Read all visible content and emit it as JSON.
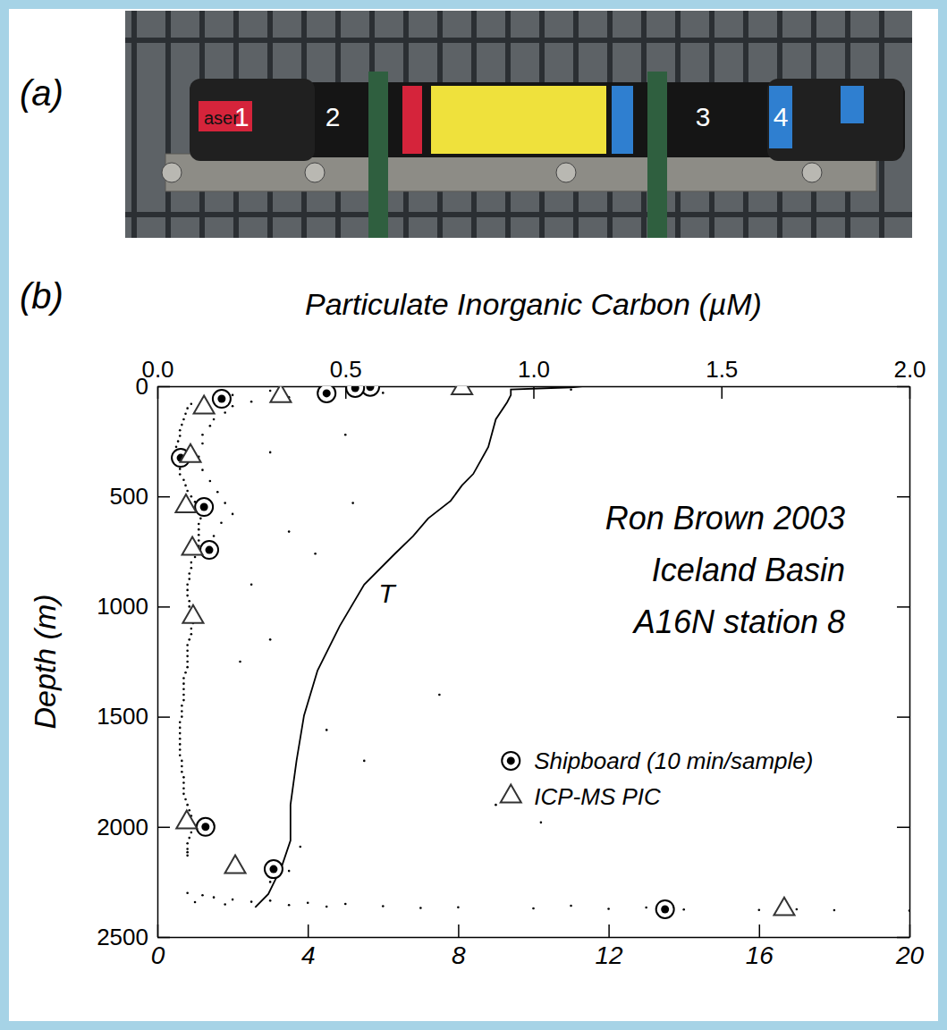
{
  "photo": {
    "panel": "(a)",
    "labels": [
      "aser",
      "1",
      "2",
      "3",
      "4"
    ]
  },
  "chart_data": {
    "type": "scatter",
    "panel": "(b)",
    "xlabel": "Particulate Inorganic Carbon (µM)",
    "ylabel": "Depth (m)",
    "annotations": [
      "Ron Brown 2003",
      "Iceland Basin",
      "A16N station 8"
    ],
    "xlim": [
      0,
      2
    ],
    "xticks": [
      {
        "value": 0,
        "label": "0.0"
      },
      0.5,
      {
        "value": 1,
        "label": "1.0"
      },
      1.5,
      {
        "value": 2,
        "label": "2.0"
      }
    ],
    "x2lim": [
      0,
      20
    ],
    "x2ticks": [
      0,
      4,
      8,
      12,
      16,
      20
    ],
    "ylim": [
      2500,
      0
    ],
    "yticks": [
      0,
      500,
      1000,
      1500,
      2000,
      2500
    ],
    "legend": "bottom-right",
    "series": [
      {
        "type": "scatter",
        "marker": "dot",
        "color": "#000000",
        "x": [
          0.3,
          0.2,
          0.12,
          0.09,
          0.08,
          0.07,
          0.06,
          0.055,
          0.05,
          0.055,
          0.06,
          0.075,
          0.09,
          0.11,
          0.115,
          0.11,
          0.11,
          0.105,
          0.09,
          0.085,
          0.08,
          0.08,
          0.085,
          0.09,
          0.09,
          0.085,
          0.08,
          0.08,
          0.075,
          0.07,
          0.07,
          0.065,
          0.065,
          0.06,
          0.06,
          0.06,
          0.065,
          0.065,
          0.07,
          0.07,
          0.08,
          0.09,
          0.09,
          0.085,
          0.08,
          0.08,
          0.075,
          0.065,
          0.06,
          0.05,
          0.05,
          0.06,
          0.07,
          0.08,
          0.1,
          0.12,
          0.11,
          0.11,
          0.11,
          0.1,
          0.09,
          0.085,
          0.08,
          0.085,
          0.09,
          0.095,
          0.09,
          0.08,
          0.08,
          0.08,
          0.07,
          0.07,
          0.07,
          0.065,
          0.06,
          0.06,
          0.06,
          0.06,
          0.065,
          0.07,
          0.07,
          0.075,
          0.085,
          0.09,
          0.09,
          0.08,
          0.08,
          0.6,
          0.8,
          1.1,
          0.45,
          0.35,
          0.25,
          0.2,
          0.18,
          0.15,
          0.14,
          0.12,
          0.12,
          0.11,
          0.12,
          0.14,
          0.16,
          0.18,
          0.2,
          0.17,
          0.15,
          0.3,
          0.52,
          0.35,
          0.42,
          0.3,
          0.75,
          0.45,
          0.55,
          0.9,
          1.02,
          0.38,
          0.35,
          0.3,
          0.5,
          0.25,
          0.22,
          0.08,
          0.12,
          0.15,
          0.2,
          0.3,
          0.25,
          0.4,
          0.5,
          0.35,
          0.6,
          0.8,
          1.0,
          1.2,
          1.4,
          1.6,
          1.8,
          2.0,
          0.7,
          0.45,
          0.18,
          0.1,
          1.1,
          1.7,
          1.3
        ],
        "values": [
          20,
          40,
          60,
          80,
          100,
          150,
          200,
          250,
          300,
          350,
          400,
          450,
          500,
          550,
          600,
          650,
          700,
          750,
          800,
          850,
          900,
          950,
          1000,
          1050,
          1100,
          1150,
          1200,
          1250,
          1300,
          1350,
          1400,
          1450,
          1500,
          1550,
          1600,
          1650,
          1700,
          1750,
          1800,
          1850,
          1900,
          1950,
          2000,
          2050,
          2100,
          2130,
          125,
          175,
          225,
          275,
          325,
          375,
          425,
          475,
          525,
          575,
          625,
          675,
          725,
          775,
          825,
          875,
          925,
          975,
          1025,
          1075,
          1125,
          1175,
          1225,
          1275,
          1325,
          1375,
          1425,
          1475,
          1525,
          1575,
          1625,
          1675,
          1725,
          1775,
          1825,
          1875,
          1925,
          1975,
          2025,
          2075,
          2115,
          30,
          25,
          15,
          35,
          50,
          70,
          90,
          120,
          150,
          180,
          220,
          260,
          320,
          380,
          430,
          480,
          530,
          580,
          620,
          680,
          300,
          530,
          660,
          760,
          1150,
          1400,
          1560,
          1700,
          1900,
          1980,
          2090,
          2200,
          2250,
          220,
          900,
          1250,
          2300,
          2310,
          2320,
          2330,
          2335,
          2340,
          2345,
          2350,
          2355,
          2360,
          2365,
          2370,
          2372,
          2375,
          2377,
          2378,
          2380,
          2368,
          2362,
          2352,
          2342,
          2358,
          2374,
          2366
        ]
      },
      {
        "name": "T",
        "type": "line",
        "axis": "x2",
        "color": "#000000",
        "line_style": "solid",
        "x": [
          11.3,
          11.0,
          9.4,
          9.4,
          9.3,
          9.0,
          8.8,
          8.4,
          8.1,
          7.8,
          7.2,
          6.8,
          6.3,
          5.5,
          4.85,
          4.26,
          3.9,
          3.7,
          3.54,
          3.54,
          3.3,
          2.95,
          2.6
        ],
        "values": [
          0,
          5,
          15,
          40,
          73,
          150,
          276,
          398,
          450,
          520,
          600,
          680,
          763,
          900,
          1088,
          1290,
          1494,
          1700,
          1900,
          2062,
          2183,
          2305,
          2366
        ]
      },
      {
        "name": "Shipboard (10 min/sample)",
        "type": "scatter",
        "marker": "circle-dot",
        "color": "#000000",
        "x": [
          0.566,
          0.526,
          0.45,
          0.171,
          0.062,
          0.124,
          0.138,
          0.128,
          0.309,
          1.35
        ],
        "values": [
          3,
          8,
          32,
          57,
          325,
          548,
          743,
          2000,
          2192,
          2374
        ]
      },
      {
        "name": "ICP-MS PIC",
        "type": "scatter",
        "marker": "triangle",
        "color": "#333333",
        "x": [
          0.81,
          0.328,
          0.124,
          0.088,
          0.076,
          0.093,
          0.095,
          0.078,
          0.207,
          1.667
        ],
        "values": [
          10,
          45,
          97,
          317,
          545,
          738,
          1047,
          1980,
          2183,
          2374
        ]
      }
    ]
  }
}
